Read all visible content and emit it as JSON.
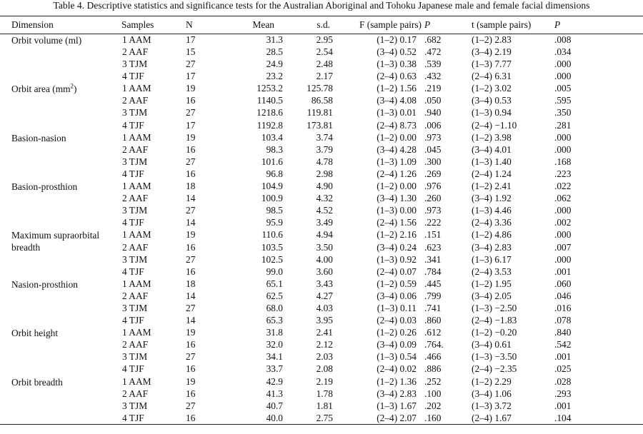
{
  "caption": "Table 4.  Descriptive statistics and significance tests for the Australian Aboriginal and Tohoku Japanese male and female facial dimensions",
  "headers": {
    "dimension": "Dimension",
    "samples": "Samples",
    "n": "N",
    "mean": "Mean",
    "sd": "s.d.",
    "f": "F (sample pairs)",
    "p1": "P",
    "t": "t (sample pairs)",
    "p2": "P"
  },
  "groups": [
    {
      "dimension": "Orbit volume (ml)",
      "rows": [
        {
          "sample": "1  AAM",
          "n": "17",
          "mean": "31.3",
          "sd": "2.95",
          "f": "(1–2) 0.17",
          "p1": ".682",
          "t": "(1–2) 2.83",
          "p2": ".008"
        },
        {
          "sample": "2  AAF",
          "n": "15",
          "mean": "28.5",
          "sd": "2.54",
          "f": "(3–4) 0.52",
          "p1": ".472",
          "t": "(3–4) 2.19",
          "p2": ".034"
        },
        {
          "sample": "3  TJM",
          "n": "27",
          "mean": "24.9",
          "sd": "2.48",
          "f": "(1–3) 0.38",
          "p1": ".539",
          "t": "(1–3) 7.77",
          "p2": ".000"
        },
        {
          "sample": "4  TJF",
          "n": "17",
          "mean": "23.2",
          "sd": "2.17",
          "f": "(2–4) 0.63",
          "p1": ".432",
          "t": "(2–4) 6.31",
          "p2": ".000"
        }
      ]
    },
    {
      "dimension": "Orbit area (mm",
      "dimension_sup": "2",
      "dimension_tail": ")",
      "rows": [
        {
          "sample": "1  AAM",
          "n": "19",
          "mean": "1253.2",
          "sd": "125.78",
          "f": "(1–2) 1.56",
          "p1": ".219",
          "t": "(1–2) 3.02",
          "p2": ".005"
        },
        {
          "sample": "2  AAF",
          "n": "16",
          "mean": "1140.5",
          "sd": "86.58",
          "f": "(3–4) 4.08",
          "p1": ".050",
          "t": "(3–4) 0.53",
          "p2": ".595"
        },
        {
          "sample": "3  TJM",
          "n": "27",
          "mean": "1218.6",
          "sd": "119.81",
          "f": "(1–3) 0.01",
          "p1": ".940",
          "t": "(1–3) 0.94",
          "p2": ".350"
        },
        {
          "sample": "4  TJF",
          "n": "17",
          "mean": "1192.8",
          "sd": "173.81",
          "f": "(2–4) 8.73",
          "p1": ".006",
          "t": "(2–4) −1.10",
          "p2": ".281"
        }
      ]
    },
    {
      "dimension": "Basion-nasion",
      "rows": [
        {
          "sample": "1  AAM",
          "n": "19",
          "mean": "103.4",
          "sd": "3.74",
          "f": "(1–2) 0.00",
          "p1": ".973",
          "t": "(1–2) 3.98",
          "p2": ".000"
        },
        {
          "sample": "2  AAF",
          "n": "16",
          "mean": "98.3",
          "sd": "3.79",
          "f": "(3–4) 4.28",
          "p1": ".045",
          "t": "(3–4) 4.01",
          "p2": ".000"
        },
        {
          "sample": "3  TJM",
          "n": "27",
          "mean": "101.6",
          "sd": "4.78",
          "f": "(1–3) 1.09",
          "p1": ".300",
          "t": "(1–3) 1.40",
          "p2": ".168"
        },
        {
          "sample": "4  TJF",
          "n": "16",
          "mean": "96.8",
          "sd": "2.98",
          "f": "(2–4) 1.26",
          "p1": ".269",
          "t": "(2–4) 1.24",
          "p2": ".223"
        }
      ]
    },
    {
      "dimension": "Basion-prosthion",
      "rows": [
        {
          "sample": "1  AAM",
          "n": "18",
          "mean": "104.9",
          "sd": "4.90",
          "f": "(1–2) 0.00",
          "p1": ".976",
          "t": "(1–2) 2.41",
          "p2": ".022"
        },
        {
          "sample": "2  AAF",
          "n": "14",
          "mean": "100.9",
          "sd": "4.32",
          "f": "(3–4) 1.30",
          "p1": ".260",
          "t": "(3–4) 1.92",
          "p2": ".062"
        },
        {
          "sample": "3  TJM",
          "n": "27",
          "mean": "98.5",
          "sd": "4.52",
          "f": "(1–3) 0.00",
          "p1": ".973",
          "t": "(1–3) 4.46",
          "p2": ".000"
        },
        {
          "sample": "4  TJF",
          "n": "14",
          "mean": "95.9",
          "sd": "3.49",
          "f": "(2–4) 1.56",
          "p1": ".222",
          "t": "(2–4) 3.36",
          "p2": ".002"
        }
      ]
    },
    {
      "dimension": "Maximum supraorbital breadth",
      "rows": [
        {
          "sample": "1  AAM",
          "n": "19",
          "mean": "110.6",
          "sd": "4.94",
          "f": "(1–2) 2.16",
          "p1": ".151",
          "t": "(1–2) 4.86",
          "p2": ".000"
        },
        {
          "sample": "2  AAF",
          "n": "16",
          "mean": "103.5",
          "sd": "3.50",
          "f": "(3–4) 0.24",
          "p1": ".623",
          "t": "(3–4) 2.83",
          "p2": ".007"
        },
        {
          "sample": "3  TJM",
          "n": "27",
          "mean": "102.5",
          "sd": "4.00",
          "f": "(1–3) 0.92",
          "p1": ".341",
          "t": "(1–3) 6.17",
          "p2": ".000"
        },
        {
          "sample": "4  TJF",
          "n": "16",
          "mean": "99.0",
          "sd": "3.60",
          "f": "(2–4) 0.07",
          "p1": ".784",
          "t": "(2–4) 3.53",
          "p2": ".001"
        }
      ]
    },
    {
      "dimension": "Nasion-prosthion",
      "rows": [
        {
          "sample": "1  AAM",
          "n": "18",
          "mean": "65.1",
          "sd": "3.43",
          "f": "(1–2) 0.59",
          "p1": ".445",
          "t": "(1–2) 1.95",
          "p2": ".060"
        },
        {
          "sample": "2  AAF",
          "n": "14",
          "mean": "62.5",
          "sd": "4.27",
          "f": "(3–4) 0.06",
          "p1": ".799",
          "t": "(3–4) 2.05",
          "p2": ".046"
        },
        {
          "sample": "3  TJM",
          "n": "27",
          "mean": "68.0",
          "sd": "4.03",
          "f": "(1–3) 0.11",
          "p1": ".741",
          "t": "(1–3) −2.50",
          "p2": ".016"
        },
        {
          "sample": "4  TJF",
          "n": "14",
          "mean": "65.3",
          "sd": "3.95",
          "f": "(2–4) 0.03",
          "p1": ".860",
          "t": "(2–4) −1.83",
          "p2": ".078"
        }
      ]
    },
    {
      "dimension": "Orbit height",
      "rows": [
        {
          "sample": "1  AAM",
          "n": "19",
          "mean": "31.8",
          "sd": "2.41",
          "f": "(1–2) 0.26",
          "p1": ".612",
          "t": "(1–2) −0.20",
          "p2": ".840"
        },
        {
          "sample": "2  AAF",
          "n": "16",
          "mean": "32.0",
          "sd": "2.12",
          "f": "(3–4) 0.09",
          "p1": ".764.",
          "t": "(3–4) 0.61",
          "p2": ".542"
        },
        {
          "sample": "3  TJM",
          "n": "27",
          "mean": "34.1",
          "sd": "2.03",
          "f": "(1–3) 0.54",
          "p1": ".466",
          "t": "(1–3) −3.50",
          "p2": ".001"
        },
        {
          "sample": "4  TJF",
          "n": "16",
          "mean": "33.7",
          "sd": "2.08",
          "f": "(2–4) 0.02",
          "p1": ".886",
          "t": "(2–4) −2.35",
          "p2": ".025"
        }
      ]
    },
    {
      "dimension": "Orbit breadth",
      "rows": [
        {
          "sample": "1  AAM",
          "n": "19",
          "mean": "42.9",
          "sd": "2.19",
          "f": "(1–2) 1.36",
          "p1": ".252",
          "t": "(1–2) 2.29",
          "p2": ".028"
        },
        {
          "sample": "2  AAF",
          "n": "16",
          "mean": "41.3",
          "sd": "1.78",
          "f": "(3–4) 2.83",
          "p1": ".100",
          "t": "(3–4) 1.06",
          "p2": ".293"
        },
        {
          "sample": "3  TJM",
          "n": "27",
          "mean": "40.7",
          "sd": "1.81",
          "f": "(1–3) 1.67",
          "p1": ".202",
          "t": "(1–3) 3.72",
          "p2": ".001"
        },
        {
          "sample": "4  TJF",
          "n": "16",
          "mean": "40.0",
          "sd": "2.75",
          "f": "(2–4) 2.07",
          "p1": ".160",
          "t": "(2–4) 1.67",
          "p2": ".104"
        }
      ]
    }
  ]
}
